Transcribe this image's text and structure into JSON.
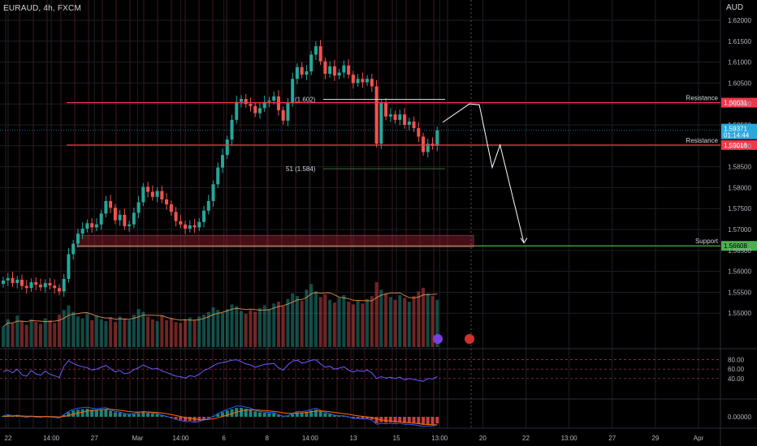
{
  "header": {
    "symbol": "EURAUD, 4h, FXCM",
    "currency": "AUD"
  },
  "colors": {
    "up": "#26a69a",
    "down": "#ef5350",
    "resistance": "#f23645",
    "support": "#4caf50",
    "price": "#2aa8dc",
    "projection": "#ffffff",
    "rsi": "#6a5cff",
    "macd": "#2962ff",
    "signal": "#ff6d00"
  },
  "chart_data": [
    {
      "type": "candlestick",
      "title": "",
      "y_axis": {
        "min": 1.545,
        "max": 1.62,
        "ticks": [
          "1.62000",
          "1.61500",
          "1.61000",
          "1.60500",
          "1.60000",
          "1.59500",
          "1.59000",
          "1.58500",
          "1.58000",
          "1.57500",
          "1.57000",
          "1.56500",
          "1.56000",
          "1.55500",
          "1.55000"
        ]
      },
      "x_ticks": [
        "22",
        "14:00",
        "27",
        "Mar",
        "14:00",
        "6",
        "8",
        "14:00",
        "13",
        "15",
        "13:00",
        "20",
        "22",
        "13:00",
        "27",
        "29",
        "Apr"
      ],
      "grid": true,
      "levels": [
        {
          "name": "Resistance",
          "value": "1.60031",
          "kind": "resistance"
        },
        {
          "name": "Resistance",
          "value": "1.59018",
          "kind": "resistance"
        },
        {
          "name": "Support",
          "value": "1.56608",
          "kind": "support"
        }
      ],
      "annotations": {
        "high_label": "(1.602)",
        "low_label": "51 (1.584)"
      },
      "current_price": {
        "value": "1.59371",
        "countdown": "01:14:44"
      },
      "support_zone": [
        1.5658,
        1.5686
      ],
      "projection_path": [
        [
          1.5935,
          1.5956
        ],
        [
          1.5962,
          1.6
        ],
        [
          1.5972,
          1.5998
        ],
        [
          1.5985,
          1.5848
        ],
        [
          1.5993,
          1.5902
        ],
        [
          1.6017,
          1.5668
        ]
      ],
      "closes": [
        1.5578,
        1.5584,
        1.5572,
        1.558,
        1.5565,
        1.556,
        1.5574,
        1.5568,
        1.5562,
        1.5572,
        1.5566,
        1.556,
        1.5552,
        1.5582,
        1.5641,
        1.5666,
        1.569,
        1.5702,
        1.5715,
        1.5705,
        1.5712,
        1.5738,
        1.5768,
        1.5752,
        1.5722,
        1.5735,
        1.5708,
        1.5712,
        1.574,
        1.5765,
        1.5802,
        1.579,
        1.5778,
        1.5792,
        1.5772,
        1.576,
        1.5742,
        1.572,
        1.5712,
        1.5702,
        1.571,
        1.5705,
        1.5718,
        1.5745,
        1.5768,
        1.5808,
        1.5848,
        1.5878,
        1.5915,
        1.5962,
        1.6005,
        1.6012,
        1.6,
        1.5995,
        1.5978,
        1.599,
        1.6005,
        1.6008,
        1.6018,
        1.5985,
        1.596,
        1.6002,
        1.606,
        1.6088,
        1.607,
        1.6078,
        1.6118,
        1.6138,
        1.6102,
        1.6072,
        1.609,
        1.6068,
        1.6075,
        1.6092,
        1.607,
        1.605,
        1.606,
        1.6052,
        1.606,
        1.6042,
        1.5905,
        1.6002,
        1.597,
        1.5975,
        1.5962,
        1.5975,
        1.595,
        1.5958,
        1.5942,
        1.5922,
        1.5885,
        1.5905,
        1.59,
        1.5937
      ],
      "volume": [
        22,
        30,
        26,
        34,
        28,
        24,
        30,
        27,
        25,
        31,
        29,
        26,
        35,
        40,
        45,
        38,
        33,
        31,
        36,
        29,
        34,
        30,
        28,
        32,
        27,
        33,
        31,
        29,
        35,
        41,
        38,
        33,
        30,
        28,
        34,
        29,
        31,
        27,
        26,
        30,
        32,
        29,
        33,
        35,
        38,
        43,
        40,
        37,
        41,
        46,
        44,
        39,
        36,
        40,
        38,
        42,
        45,
        41,
        47,
        49,
        44,
        52,
        58,
        55,
        50,
        62,
        68,
        60,
        54,
        57,
        51,
        48,
        53,
        56,
        49,
        46,
        50,
        47,
        52,
        55,
        70,
        62,
        58,
        54,
        51,
        56,
        53,
        49,
        55,
        60,
        64,
        58,
        55,
        51
      ],
      "rsi": {
        "levels": [
          "80.00",
          "60.00",
          "40.00"
        ],
        "values": [
          55,
          58,
          52,
          60,
          48,
          45,
          57,
          50,
          47,
          56,
          49,
          46,
          42,
          66,
          78,
          72,
          68,
          65,
          63,
          58,
          60,
          64,
          68,
          61,
          54,
          57,
          50,
          52,
          59,
          63,
          69,
          64,
          60,
          62,
          56,
          53,
          49,
          45,
          44,
          41,
          46,
          44,
          49,
          57,
          61,
          67,
          72,
          74,
          76,
          79,
          80,
          76,
          71,
          69,
          64,
          67,
          70,
          71,
          72,
          63,
          58,
          69,
          77,
          79,
          73,
          75,
          79,
          80,
          71,
          64,
          66,
          60,
          62,
          65,
          58,
          54,
          57,
          55,
          58,
          52,
          40,
          44,
          41,
          43,
          40,
          43,
          37,
          40,
          38,
          36,
          34,
          40,
          39,
          44
        ]
      },
      "macd": {
        "levels": [
          "0.00000"
        ],
        "hist": [
          0.1,
          0.2,
          0.1,
          0.15,
          0.05,
          -0.05,
          0.05,
          0,
          -0.05,
          0.05,
          0,
          -0.05,
          -0.1,
          0.2,
          0.5,
          0.7,
          0.8,
          0.85,
          0.9,
          0.8,
          0.75,
          0.8,
          0.85,
          0.7,
          0.5,
          0.45,
          0.3,
          0.25,
          0.3,
          0.4,
          0.5,
          0.45,
          0.35,
          0.3,
          0.15,
          0.05,
          -0.1,
          -0.25,
          -0.35,
          -0.45,
          -0.45,
          -0.5,
          -0.45,
          -0.3,
          -0.15,
          0.05,
          0.3,
          0.5,
          0.7,
          0.85,
          1.0,
          1.0,
          0.9,
          0.8,
          0.6,
          0.5,
          0.45,
          0.4,
          0.4,
          0.2,
          0.05,
          0.1,
          0.3,
          0.5,
          0.5,
          0.55,
          0.7,
          0.8,
          0.6,
          0.4,
          0.3,
          0.15,
          0.1,
          0.1,
          0.0,
          -0.15,
          -0.15,
          -0.2,
          -0.2,
          -0.3,
          -0.7,
          -0.6,
          -0.65,
          -0.6,
          -0.65,
          -0.6,
          -0.7,
          -0.7,
          -0.75,
          -0.8,
          -0.9,
          -0.85,
          -0.85,
          -0.75
        ]
      }
    }
  ]
}
